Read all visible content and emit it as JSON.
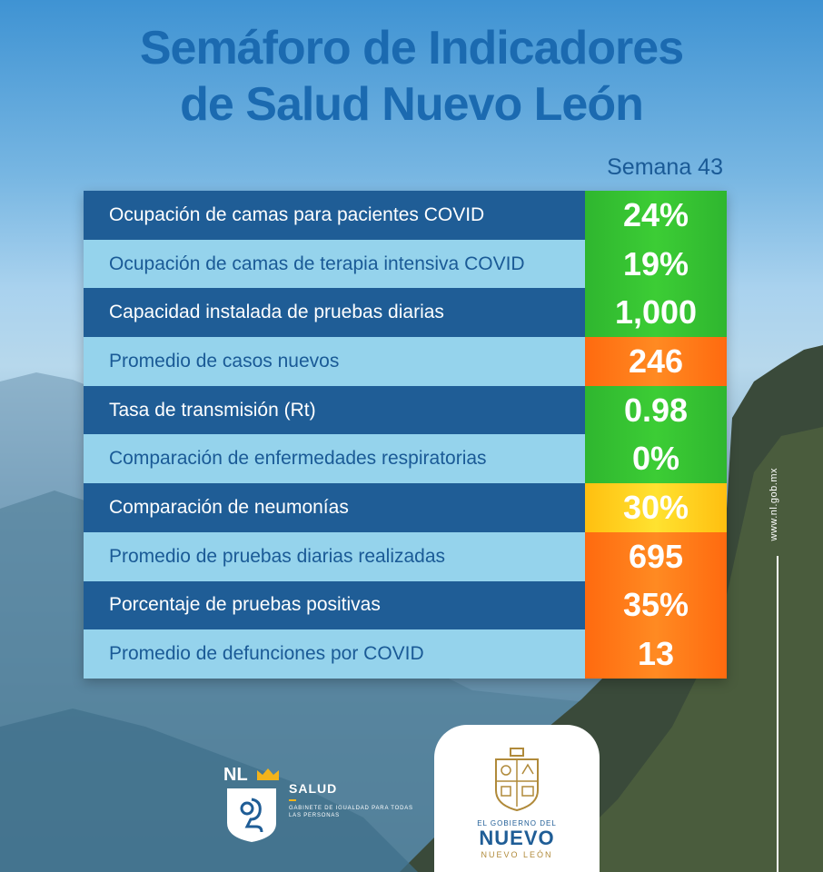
{
  "title": {
    "line1": "Semáforo de Indicadores",
    "line2": "de Salud Nuevo León"
  },
  "week_label": "Semana 43",
  "indicators": [
    {
      "label": "Ocupación de camas para pacientes COVID",
      "value": "24%",
      "status": "green"
    },
    {
      "label": "Ocupación de camas de terapia intensiva COVID",
      "value": "19%",
      "status": "green"
    },
    {
      "label": "Capacidad instalada de pruebas diarias",
      "value": "1,000",
      "status": "green"
    },
    {
      "label": "Promedio de casos nuevos",
      "value": "246",
      "status": "orange"
    },
    {
      "label": "Tasa de transmisión (Rt)",
      "value": "0.98",
      "status": "green"
    },
    {
      "label": "Comparación de enfermedades respiratorias",
      "value": "0%",
      "status": "green"
    },
    {
      "label": "Comparación de neumonías",
      "value": "30%",
      "status": "yellow"
    },
    {
      "label": "Promedio de pruebas diarias realizadas",
      "value": "695",
      "status": "orange"
    },
    {
      "label": "Porcentaje de pruebas positivas",
      "value": "35%",
      "status": "orange"
    },
    {
      "label": "Promedio de defunciones por COVID",
      "value": "13",
      "status": "orange"
    }
  ],
  "side_url": "www.nl.gob.mx",
  "logos": {
    "nl": "NL",
    "salud": "SALUD",
    "salud_subtitle": "GABINETE DE IGUALDAD PARA TODAS LAS PERSONAS",
    "gov_small": "EL GOBIERNO DEL",
    "gov_big": "NUEVO",
    "gov_sub": "NUEVO LEÓN"
  },
  "colors": {
    "title": "#1b6ab0",
    "row_dark": "#1f5d96",
    "row_light": "#95d3ec",
    "green": "#3ccd35",
    "orange": "#ff7a18",
    "yellow": "#ffd21e"
  }
}
